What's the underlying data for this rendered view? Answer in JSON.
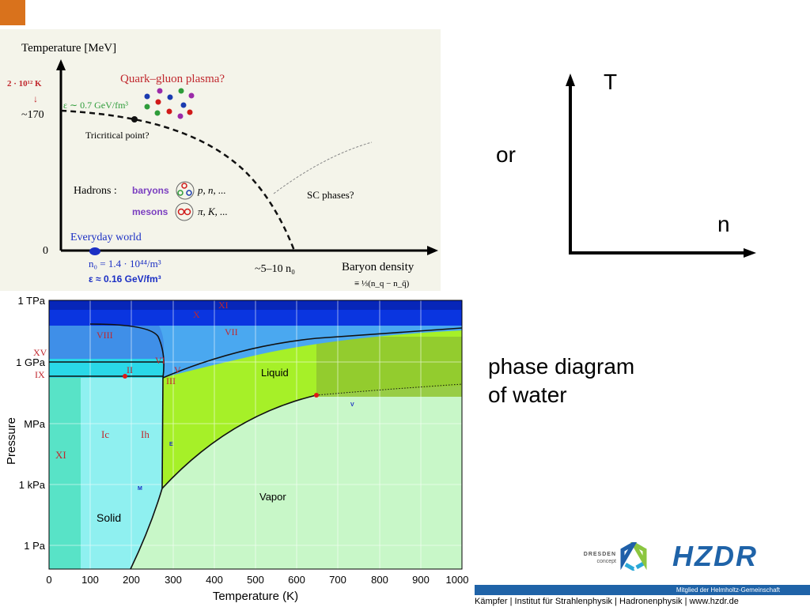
{
  "colors": {
    "accent_orange": "#d9721c",
    "hzdr_blue": "#1f63a8",
    "dashed_curve": "#111111",
    "qgp_label": "#c0272d",
    "energy_label": "#2e9c3a",
    "hadron_species": "#7b3fc0",
    "everyday": "#1b2fc4"
  },
  "qcd_diagram": {
    "y_axis_title": "Temperature [MeV]",
    "temp_kelvin": "2 · 10¹² K",
    "down_arrow": "↓",
    "tick_170": "~170",
    "tick_0": "0",
    "qgp_label": "Quark–gluon plasma?",
    "energy_density": "ε ∼ 0.7 GeV/fm³",
    "tricritical": "Tricritical point?",
    "hadrons_label": "Hadrons :",
    "baryons_label": "baryons",
    "baryons_examples": "p, n, ...",
    "mesons_label": "mesons",
    "mesons_examples": "π, K, ...",
    "sc_phases": "SC phases?",
    "everyday_world": "Everyday world",
    "n0_value": "n₀ = 1.4 · 10⁴⁴/m³",
    "epsilon_value": "ε ≈ 0.16 GeV/fm³",
    "x_tick": "~5–10 n₀",
    "x_axis_title": "Baryon density",
    "x_axis_def": "≡ ⅓(n_q − n_q̄)"
  },
  "schematic": {
    "y_label": "T",
    "x_label": "n",
    "or_label": "or"
  },
  "water_caption": {
    "line1": "phase diagram",
    "line2": "of water"
  },
  "water_diagram": {
    "y_axis_title": "Pressure",
    "x_axis_title": "Temperature (K)",
    "y_ticks": [
      "1 TPa",
      "1 GPa",
      "MPa",
      "1 kPa",
      "1 Pa"
    ],
    "x_ticks": [
      "0",
      "100",
      "200",
      "300",
      "400",
      "500",
      "600",
      "700",
      "800",
      "900",
      "1000"
    ],
    "phase_labels": {
      "liquid": "Liquid",
      "vapor": "Vapor",
      "solid": "Solid",
      "ic": "Ic",
      "ih": "Ih",
      "xi_low": "XI",
      "viii": "VIII",
      "vii": "VII",
      "x": "X",
      "xi_top": "XI",
      "xv": "XV",
      "ix": "IX",
      "ii": "II",
      "iii": "III",
      "v": "V",
      "vi": "VI"
    },
    "point_labels": {
      "e": "E",
      "m": "M",
      "v_point": "V"
    }
  },
  "logos": {
    "dresden_line1": "DRESDEN",
    "dresden_line2": "concept",
    "hzdr": "HZDR"
  },
  "footer": {
    "member_text": "Mitglied der Helmholtz-Gemeinschaft",
    "citation": "Kämpfer | Institut für Strahlenphysik | Hadronenphysik | www.hzdr.de"
  }
}
